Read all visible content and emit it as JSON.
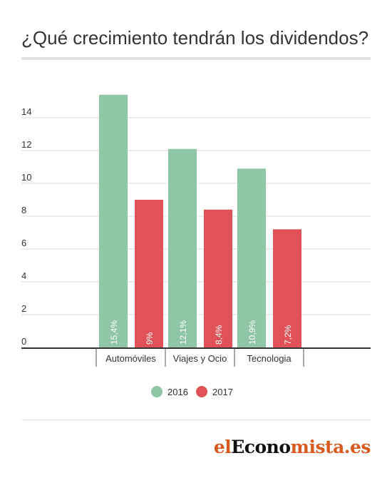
{
  "header": {
    "title": "¿Qué crecimiento tendrán los dividendos?"
  },
  "chart_data": {
    "type": "bar",
    "title": "¿Qué crecimiento tendrán los dividendos?",
    "xlabel": "",
    "ylabel": "",
    "categories": [
      "Automóviles",
      "Viajes y Ocio",
      "Tecnologia"
    ],
    "series": [
      {
        "name": "2016",
        "values": [
          15.4,
          12.1,
          10.9
        ],
        "labels": [
          "15,4%",
          "12,1%",
          "10,9%"
        ],
        "color": "#8fc6a6"
      },
      {
        "name": "2017",
        "values": [
          9,
          8.4,
          7.2
        ],
        "labels": [
          "9%",
          "8,4%",
          "7,2%"
        ],
        "color": "#e05257"
      }
    ],
    "ylim": [
      0,
      15.4
    ],
    "yticks": [
      0,
      2,
      4,
      6,
      8,
      10,
      12,
      14
    ],
    "grid": true,
    "legend": "bottom-center"
  },
  "brand": {
    "part1": "el",
    "part2": "Econo",
    "part3": "mista.es"
  }
}
